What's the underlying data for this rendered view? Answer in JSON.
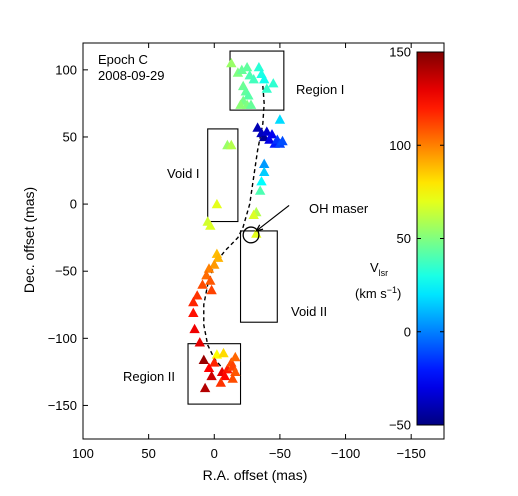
{
  "chart_data": {
    "type": "scatter",
    "title": "",
    "annotations": {
      "epoch": "Epoch C",
      "date": "2008-09-29",
      "region1": "Region I",
      "region2": "Region II",
      "void1": "Void I",
      "void2": "Void II",
      "oh_maser": "OH maser"
    },
    "xlabel": "R.A. offset (mas)",
    "ylabel": "Dec. offset (mas)",
    "xlim": [
      100,
      -175
    ],
    "ylim": [
      -175,
      120
    ],
    "x_reversed": true,
    "xticks": [
      100,
      50,
      0,
      -50,
      -100,
      -150
    ],
    "xtick_labels": [
      "100",
      "50",
      "0",
      "−50",
      "−100",
      "−150"
    ],
    "yticks": [
      100,
      50,
      0,
      -50,
      -100,
      -150
    ],
    "ytick_labels": [
      "100",
      "50",
      "0",
      "−50",
      "−100",
      "−150"
    ],
    "grid": false,
    "marker": "triangle",
    "colorbar": {
      "label_main": "V",
      "label_sub": "lsr",
      "label_units_pre": "(km s",
      "label_units_sup": "−1",
      "label_units_post": ")",
      "range": [
        -50,
        150
      ],
      "ticks": [
        150,
        100,
        50,
        0,
        -50
      ],
      "tick_labels": [
        "150",
        "100",
        "50",
        "0",
        "−50"
      ],
      "colormap": "jet"
    },
    "boxes": [
      {
        "name": "Region I",
        "x": [
          -53,
          -12
        ],
        "y": [
          70,
          114
        ]
      },
      {
        "name": "Void I",
        "x": [
          5,
          -18
        ],
        "y": [
          -13,
          56
        ]
      },
      {
        "name": "Void II",
        "x": [
          -20,
          -48
        ],
        "y": [
          -88,
          -20
        ]
      },
      {
        "name": "Region II",
        "x": [
          20,
          -20
        ],
        "y": [
          -149,
          -104
        ]
      }
    ],
    "oh_maser": {
      "x": -28,
      "y": -23,
      "radius": 6
    },
    "arrow": {
      "from": [
        -57,
        -1
      ],
      "to": [
        -32,
        -20
      ]
    },
    "trajectory": [
      [
        -37,
        88
      ],
      [
        -38,
        75
      ],
      [
        -37,
        60
      ],
      [
        -33,
        40
      ],
      [
        -30,
        20
      ],
      [
        -27,
        0
      ],
      [
        -22,
        -17
      ],
      [
        -18,
        -25
      ],
      [
        -8,
        -35
      ],
      [
        0,
        -45
      ],
      [
        5,
        -60
      ],
      [
        8,
        -75
      ],
      [
        8,
        -90
      ],
      [
        5,
        -105
      ],
      [
        0,
        -115
      ],
      [
        -6,
        -122
      ]
    ],
    "points": [
      {
        "x": -13,
        "y": 105,
        "v": 55
      },
      {
        "x": -18,
        "y": 98,
        "v": 50
      },
      {
        "x": -21,
        "y": 100,
        "v": 45
      },
      {
        "x": -25,
        "y": 102,
        "v": 44
      },
      {
        "x": -27,
        "y": 96,
        "v": 40
      },
      {
        "x": -30,
        "y": 93,
        "v": 38
      },
      {
        "x": -34,
        "y": 102,
        "v": 33
      },
      {
        "x": -36,
        "y": 97,
        "v": 30
      },
      {
        "x": -38,
        "y": 93,
        "v": 28
      },
      {
        "x": -22,
        "y": 88,
        "v": 46
      },
      {
        "x": -24,
        "y": 84,
        "v": 44
      },
      {
        "x": -26,
        "y": 81,
        "v": 42
      },
      {
        "x": -22,
        "y": 77,
        "v": 48
      },
      {
        "x": -25,
        "y": 74,
        "v": 50
      },
      {
        "x": -28,
        "y": 74,
        "v": 45
      },
      {
        "x": -20,
        "y": 74,
        "v": 52
      },
      {
        "x": -40,
        "y": 86,
        "v": 35
      },
      {
        "x": -45,
        "y": 90,
        "v": 34
      },
      {
        "x": -50,
        "y": 63,
        "v": 18
      },
      {
        "x": -33,
        "y": 57,
        "v": -40
      },
      {
        "x": -36,
        "y": 53,
        "v": -38
      },
      {
        "x": -38,
        "y": 50,
        "v": -45
      },
      {
        "x": -40,
        "y": 54,
        "v": -35
      },
      {
        "x": -42,
        "y": 48,
        "v": -30
      },
      {
        "x": -44,
        "y": 52,
        "v": -28
      },
      {
        "x": -46,
        "y": 45,
        "v": -20
      },
      {
        "x": -48,
        "y": 48,
        "v": -15
      },
      {
        "x": -50,
        "y": 45,
        "v": -12
      },
      {
        "x": -52,
        "y": 47,
        "v": -10
      },
      {
        "x": -38,
        "y": 30,
        "v": 5
      },
      {
        "x": -38,
        "y": 24,
        "v": 15
      },
      {
        "x": -36,
        "y": 17,
        "v": 25
      },
      {
        "x": -35,
        "y": 10,
        "v": 40
      },
      {
        "x": -32,
        "y": -6,
        "v": 60
      },
      {
        "x": -30,
        "y": -8,
        "v": 68
      },
      {
        "x": -32,
        "y": -22,
        "v": 70
      },
      {
        "x": -10,
        "y": 44,
        "v": 55
      },
      {
        "x": -13,
        "y": 44,
        "v": 60
      },
      {
        "x": -2,
        "y": 0,
        "v": 70
      },
      {
        "x": 5,
        "y": -13,
        "v": 66
      },
      {
        "x": 3,
        "y": -16,
        "v": 68
      },
      {
        "x": -2,
        "y": -37,
        "v": 88
      },
      {
        "x": -3,
        "y": -40,
        "v": 90
      },
      {
        "x": 0,
        "y": -45,
        "v": 95
      },
      {
        "x": 4,
        "y": -48,
        "v": 100
      },
      {
        "x": 6,
        "y": -53,
        "v": 104
      },
      {
        "x": 3,
        "y": -57,
        "v": 108
      },
      {
        "x": 9,
        "y": -60,
        "v": 110
      },
      {
        "x": 13,
        "y": -68,
        "v": 115
      },
      {
        "x": 2,
        "y": -64,
        "v": 112
      },
      {
        "x": 16,
        "y": -73,
        "v": 118
      },
      {
        "x": 16,
        "y": -81,
        "v": 122
      },
      {
        "x": 15,
        "y": -93,
        "v": 128
      },
      {
        "x": 11,
        "y": -103,
        "v": 130
      },
      {
        "x": 8,
        "y": -116,
        "v": 145
      },
      {
        "x": -2,
        "y": -112,
        "v": 75
      },
      {
        "x": -7,
        "y": -111,
        "v": 82
      },
      {
        "x": 0,
        "y": -118,
        "v": 118
      },
      {
        "x": 4,
        "y": -122,
        "v": 125
      },
      {
        "x": -6,
        "y": -125,
        "v": 130
      },
      {
        "x": -10,
        "y": -123,
        "v": 120
      },
      {
        "x": -13,
        "y": -118,
        "v": 110
      },
      {
        "x": -16,
        "y": -114,
        "v": 105
      },
      {
        "x": -14,
        "y": -121,
        "v": 112
      },
      {
        "x": -16,
        "y": -125,
        "v": 108
      },
      {
        "x": -8,
        "y": -128,
        "v": 124
      },
      {
        "x": -5,
        "y": -133,
        "v": 115
      },
      {
        "x": -14,
        "y": -130,
        "v": 110
      },
      {
        "x": 2,
        "y": -128,
        "v": 135
      },
      {
        "x": 7,
        "y": -137,
        "v": 140
      }
    ]
  }
}
